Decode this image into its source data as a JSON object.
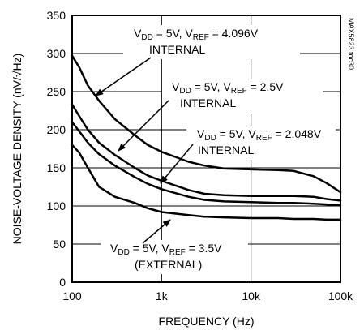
{
  "chart_data": {
    "type": "line",
    "title": "",
    "xlabel": "FREQUENCY (Hz)",
    "ylabel": "NOISE-VOLTAGE DENSITY (nV/√Hz)",
    "x_scale": "log",
    "xlim": [
      100,
      100000
    ],
    "ylim": [
      0,
      350
    ],
    "x_ticks": [
      100,
      1000,
      10000,
      100000
    ],
    "x_tick_labels": [
      "100",
      "1k",
      "10k",
      "100k"
    ],
    "y_ticks": [
      0,
      50,
      100,
      150,
      200,
      250,
      300,
      350
    ],
    "y_tick_labels": [
      "0",
      "50",
      "100",
      "150",
      "200",
      "250",
      "300",
      "350"
    ],
    "grid": true,
    "chart_id": "MAX5823 toc30",
    "series": [
      {
        "name": "VDD = 5V, VREF = 4.096V INTERNAL",
        "x": [
          100,
          120,
          150,
          200,
          300,
          500,
          700,
          1000,
          2000,
          3000,
          5000,
          10000,
          20000,
          30000,
          50000,
          70000,
          100000
        ],
        "y": [
          297,
          282,
          258,
          238,
          214,
          193,
          180,
          171,
          158,
          153,
          149,
          148,
          147,
          146,
          139,
          130,
          118
        ]
      },
      {
        "name": "VDD = 5V, VREF = 2.5V INTERNAL",
        "x": [
          100,
          120,
          150,
          200,
          300,
          500,
          700,
          1000,
          2000,
          3000,
          5000,
          10000,
          20000,
          30000,
          50000,
          70000,
          100000
        ],
        "y": [
          233,
          218,
          200,
          183,
          167,
          150,
          140,
          133,
          121,
          116,
          114,
          113,
          113,
          113,
          112,
          109,
          107
        ]
      },
      {
        "name": "VDD = 5V, VREF = 2.048V INTERNAL",
        "x": [
          100,
          120,
          150,
          200,
          300,
          500,
          700,
          1000,
          2000,
          3000,
          5000,
          10000,
          20000,
          30000,
          50000,
          70000,
          100000
        ],
        "y": [
          210,
          198,
          183,
          168,
          153,
          138,
          129,
          122,
          112,
          108,
          106,
          105,
          104,
          104,
          103,
          102,
          101
        ]
      },
      {
        "name": "VDD = 5V, VREF = 3.5V (EXTERNAL)",
        "x": [
          100,
          120,
          150,
          200,
          300,
          500,
          700,
          1000,
          2000,
          3000,
          5000,
          10000,
          20000,
          30000,
          50000,
          70000,
          100000
        ],
        "y": [
          180,
          170,
          150,
          125,
          112,
          104,
          97,
          92,
          88,
          86,
          85,
          84,
          84,
          83,
          83,
          82,
          82
        ]
      }
    ],
    "annotations": [
      {
        "line1": "VDD = 5V, VREF = 4.096V",
        "line2": "INTERNAL"
      },
      {
        "line1": "VDD = 5V, VREF = 2.5V",
        "line2": "INTERNAL"
      },
      {
        "line1": "VDD = 5V, VREF = 2.048V",
        "line2": "INTERNAL"
      },
      {
        "line1": "VDD = 5V, VREF = 3.5V",
        "line2": "(EXTERNAL)"
      }
    ]
  }
}
